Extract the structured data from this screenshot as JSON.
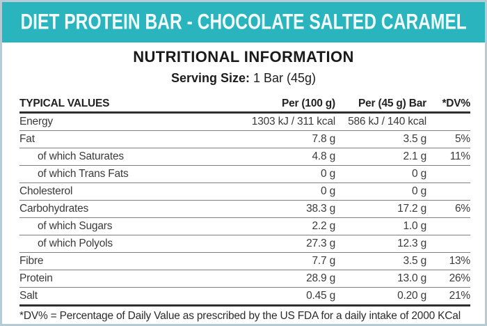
{
  "banner": {
    "title": "DIET PROTEIN BAR - CHOCOLATE SALTED CARAMEL",
    "bg_color": "#2ab4bd",
    "text_color": "#ffffff"
  },
  "heading": "NUTRITIONAL INFORMATION",
  "serving": {
    "label": "Serving Size:",
    "value": "1 Bar (45g)"
  },
  "table": {
    "columns": [
      "TYPICAL VALUES",
      "Per (100 g)",
      "Per (45 g) Bar",
      "*DV%"
    ],
    "rows": [
      {
        "name": "Energy",
        "per100": "1303 kJ / 311 kcal",
        "per45": "586 kJ / 140 kcal",
        "dv": "",
        "indent": false
      },
      {
        "name": "Fat",
        "per100": "7.8 g",
        "per45": "3.5 g",
        "dv": "5%",
        "indent": false
      },
      {
        "name": "of which Saturates",
        "per100": "4.8 g",
        "per45": "2.1 g",
        "dv": "11%",
        "indent": true
      },
      {
        "name": "of which Trans Fats",
        "per100": "0 g",
        "per45": "0 g",
        "dv": "",
        "indent": true
      },
      {
        "name": "Cholesterol",
        "per100": "0 g",
        "per45": "0 g",
        "dv": "",
        "indent": false
      },
      {
        "name": "Carbohydrates",
        "per100": "38.3 g",
        "per45": "17.2 g",
        "dv": "6%",
        "indent": false
      },
      {
        "name": "of which Sugars",
        "per100": "2.2 g",
        "per45": "1.0 g",
        "dv": "",
        "indent": true
      },
      {
        "name": "of which Polyols",
        "per100": "27.3 g",
        "per45": "12.3 g",
        "dv": "",
        "indent": true
      },
      {
        "name": "Fibre",
        "per100": "7.7 g",
        "per45": "3.5 g",
        "dv": "13%",
        "indent": false
      },
      {
        "name": "Protein",
        "per100": "28.9 g",
        "per45": "13.0 g",
        "dv": "26%",
        "indent": false
      },
      {
        "name": "Salt",
        "per100": "0.45 g",
        "per45": "0.20 g",
        "dv": "21%",
        "indent": false
      }
    ]
  },
  "footnote": "*DV% = Percentage of Daily Value as prescribed by the US FDA for a daily intake of 2000 KCal"
}
